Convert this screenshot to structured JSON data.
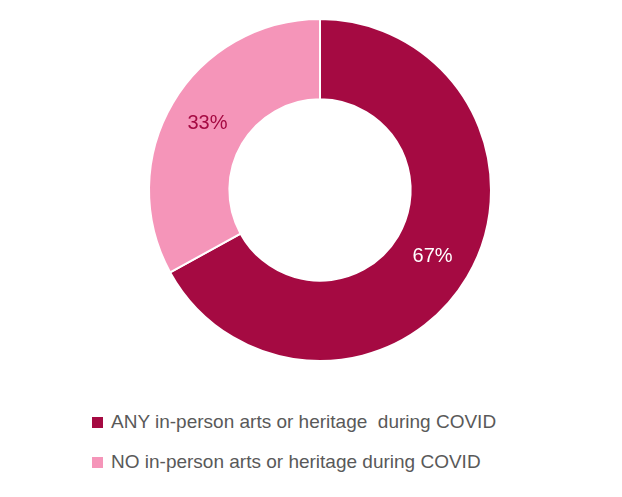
{
  "chart_data": {
    "type": "doughnut",
    "categories": [
      "ANY in-person arts or heritage  during COVID",
      "NO in-person arts or heritage during COVID"
    ],
    "values": [
      67,
      33
    ],
    "value_labels": [
      "67%",
      "33%"
    ],
    "colors": [
      "#a50a42",
      "#f595b9"
    ],
    "data_labels": true,
    "legend": "bottom"
  }
}
